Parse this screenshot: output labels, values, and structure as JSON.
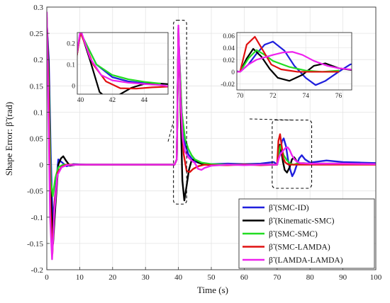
{
  "chart_data": {
    "type": "line",
    "xlabel": "Time (s)",
    "ylabel": "Shape Error: β̃ (rad)",
    "xlim": [
      0,
      100
    ],
    "ylim": [
      -0.2,
      0.3
    ],
    "xticks": [
      "0",
      "10",
      "20",
      "30",
      "40",
      "50",
      "60",
      "70",
      "80",
      "90",
      "100"
    ],
    "yticks": [
      "-0.2",
      "-0.15",
      "-0.1",
      "-0.05",
      "0",
      "0.05",
      "0.1",
      "0.15",
      "0.2",
      "0.25",
      "0.3"
    ],
    "grid": true,
    "legend_position": "bottom-right",
    "series": [
      {
        "name": "β̃ (SMC-ID)",
        "color": "#1f1fdd",
        "points": [
          [
            0,
            0.27
          ],
          [
            0.6,
            0.2
          ],
          [
            1.2,
            0.02
          ],
          [
            1.8,
            -0.11
          ],
          [
            2.5,
            -0.06
          ],
          [
            3.5,
            0.01
          ],
          [
            4.5,
            0.005
          ],
          [
            6,
            -0.003
          ],
          [
            8,
            0.001
          ],
          [
            12,
            0
          ],
          [
            20,
            0
          ],
          [
            30,
            0
          ],
          [
            38.8,
            0
          ],
          [
            39.5,
            0.01
          ],
          [
            40,
            0.25
          ],
          [
            41,
            0.1
          ],
          [
            42,
            0.04
          ],
          [
            43,
            0.02
          ],
          [
            44,
            0.012
          ],
          [
            45,
            0.006
          ],
          [
            47,
            0.002
          ],
          [
            50,
            0.001
          ],
          [
            55,
            0.002
          ],
          [
            60,
            0.001
          ],
          [
            65,
            0.002
          ],
          [
            69,
            0.005
          ],
          [
            70,
            0
          ],
          [
            70.5,
            0.012
          ],
          [
            71,
            0.03
          ],
          [
            71.5,
            0.045
          ],
          [
            72,
            0.05
          ],
          [
            72.7,
            0.035
          ],
          [
            73.3,
            0.01
          ],
          [
            74,
            -0.01
          ],
          [
            74.6,
            -0.022
          ],
          [
            75.2,
            -0.015
          ],
          [
            76,
            0
          ],
          [
            76.7,
            0.012
          ],
          [
            77.5,
            0.018
          ],
          [
            78.5,
            0.01
          ],
          [
            80,
            0.004
          ],
          [
            85,
            0.008
          ],
          [
            90,
            0.005
          ],
          [
            95,
            0.004
          ],
          [
            100,
            0.003
          ]
        ]
      },
      {
        "name": "β̃ (Kinematic-SMC)",
        "color": "#000000",
        "points": [
          [
            0,
            0.27
          ],
          [
            0.6,
            0.18
          ],
          [
            1.2,
            -0.05
          ],
          [
            1.9,
            -0.15
          ],
          [
            2.6,
            -0.08
          ],
          [
            3.5,
            0
          ],
          [
            4.3,
            0.012
          ],
          [
            5,
            0.016
          ],
          [
            5.8,
            0.008
          ],
          [
            7,
            -0.002
          ],
          [
            9,
            0
          ],
          [
            20,
            0
          ],
          [
            30,
            0
          ],
          [
            38.8,
            0
          ],
          [
            39.5,
            0.01
          ],
          [
            40,
            0.26
          ],
          [
            40.6,
            0.12
          ],
          [
            41.2,
            -0.03
          ],
          [
            41.8,
            -0.068
          ],
          [
            42.5,
            -0.04
          ],
          [
            43.2,
            -0.01
          ],
          [
            44,
            0.008
          ],
          [
            45,
            0.01
          ],
          [
            46,
            0.004
          ],
          [
            48,
            0
          ],
          [
            55,
            0
          ],
          [
            60,
            0
          ],
          [
            65,
            0
          ],
          [
            69.5,
            0
          ],
          [
            70,
            0
          ],
          [
            70.4,
            0.022
          ],
          [
            70.8,
            0.038
          ],
          [
            71.3,
            0.025
          ],
          [
            71.8,
            0.005
          ],
          [
            72.3,
            -0.01
          ],
          [
            73,
            -0.015
          ],
          [
            73.8,
            -0.005
          ],
          [
            74.5,
            0.01
          ],
          [
            75.2,
            0.014
          ],
          [
            76,
            0.006
          ],
          [
            77,
            0.002
          ],
          [
            78,
            0.001
          ],
          [
            80,
            0.002
          ],
          [
            85,
            0.002
          ],
          [
            90,
            0.002
          ],
          [
            95,
            0.001
          ],
          [
            100,
            0.001
          ]
        ]
      },
      {
        "name": "β̃ (SMC-SMC)",
        "color": "#22dd22",
        "points": [
          [
            0,
            0.27
          ],
          [
            0.6,
            0.15
          ],
          [
            1.2,
            -0.03
          ],
          [
            1.8,
            -0.06
          ],
          [
            2.6,
            -0.025
          ],
          [
            3.5,
            -0.005
          ],
          [
            5,
            0
          ],
          [
            10,
            0
          ],
          [
            20,
            0
          ],
          [
            30,
            0
          ],
          [
            38.8,
            0
          ],
          [
            39.5,
            0.01
          ],
          [
            40,
            0.25
          ],
          [
            41,
            0.1
          ],
          [
            42,
            0.05
          ],
          [
            43,
            0.03
          ],
          [
            44,
            0.018
          ],
          [
            45,
            0.01
          ],
          [
            47,
            0.004
          ],
          [
            50,
            0.001
          ],
          [
            55,
            0
          ],
          [
            60,
            0
          ],
          [
            65,
            0
          ],
          [
            69.5,
            0
          ],
          [
            70,
            0
          ],
          [
            70.5,
            0.022
          ],
          [
            71,
            0.036
          ],
          [
            71.5,
            0.028
          ],
          [
            72,
            0.018
          ],
          [
            73,
            0.008
          ],
          [
            74,
            0.002
          ],
          [
            75,
            0
          ],
          [
            76,
            0.002
          ],
          [
            78,
            0.003
          ],
          [
            80,
            0.002
          ],
          [
            90,
            0.001
          ],
          [
            100,
            0.001
          ]
        ]
      },
      {
        "name": "β̃ (SMC-LAMDA)",
        "color": "#e01010",
        "points": [
          [
            0,
            0.28
          ],
          [
            0.6,
            0.12
          ],
          [
            1.1,
            -0.08
          ],
          [
            1.7,
            -0.17
          ],
          [
            2.4,
            -0.07
          ],
          [
            3.3,
            -0.015
          ],
          [
            4.5,
            -0.004
          ],
          [
            6,
            0
          ],
          [
            10,
            0
          ],
          [
            20,
            0
          ],
          [
            30,
            0
          ],
          [
            38.8,
            0
          ],
          [
            39.5,
            0.01
          ],
          [
            40,
            0.25
          ],
          [
            40.8,
            0.1
          ],
          [
            41.6,
            0.02
          ],
          [
            42.5,
            -0.012
          ],
          [
            43.5,
            -0.014
          ],
          [
            44.5,
            -0.008
          ],
          [
            46,
            -0.003
          ],
          [
            48,
            0
          ],
          [
            50,
            -0.001
          ],
          [
            55,
            -0.001
          ],
          [
            60,
            0
          ],
          [
            65,
            -0.001
          ],
          [
            69.5,
            0
          ],
          [
            70,
            0
          ],
          [
            70.4,
            0.045
          ],
          [
            70.9,
            0.058
          ],
          [
            71.4,
            0.035
          ],
          [
            71.9,
            0.012
          ],
          [
            72.5,
            0.004
          ],
          [
            73.5,
            0
          ],
          [
            74.5,
            0
          ],
          [
            76,
            0
          ],
          [
            78,
            0
          ],
          [
            80,
            0
          ],
          [
            90,
            0
          ],
          [
            100,
            0
          ]
        ]
      },
      {
        "name": "β̃ (LAMDA-LAMDA)",
        "color": "#ee22ee",
        "points": [
          [
            0,
            0.29
          ],
          [
            0.5,
            0.1
          ],
          [
            1,
            -0.1
          ],
          [
            1.6,
            -0.18
          ],
          [
            2.3,
            -0.09
          ],
          [
            3.2,
            -0.02
          ],
          [
            4.5,
            -0.005
          ],
          [
            6,
            -0.001
          ],
          [
            10,
            0
          ],
          [
            20,
            0
          ],
          [
            30,
            0
          ],
          [
            38.8,
            0
          ],
          [
            39.5,
            0.01
          ],
          [
            40,
            0.265
          ],
          [
            40.6,
            0.13
          ],
          [
            41.3,
            0.05
          ],
          [
            42,
            0.025
          ],
          [
            43,
            0.014
          ],
          [
            44,
            0.008
          ],
          [
            45,
            0.003
          ],
          [
            46,
            -0.008
          ],
          [
            47,
            -0.01
          ],
          [
            48,
            -0.006
          ],
          [
            50,
            -0.002
          ],
          [
            55,
            0
          ],
          [
            60,
            -0.001
          ],
          [
            65,
            0
          ],
          [
            69.5,
            0
          ],
          [
            70,
            0
          ],
          [
            70.5,
            0.012
          ],
          [
            71,
            0.02
          ],
          [
            71.5,
            0.024
          ],
          [
            72,
            0.028
          ],
          [
            72.6,
            0.032
          ],
          [
            73.2,
            0.033
          ],
          [
            73.8,
            0.028
          ],
          [
            74.5,
            0.018
          ],
          [
            75.3,
            0.01
          ],
          [
            76,
            0.006
          ],
          [
            77,
            0.003
          ],
          [
            80,
            0.002
          ],
          [
            90,
            0.002
          ],
          [
            100,
            0.001
          ]
        ]
      }
    ],
    "insets": [
      {
        "xlim": [
          39.8,
          45.5
        ],
        "ylim": [
          -0.04,
          0.25
        ],
        "xticks": [
          "40",
          "42",
          "44"
        ],
        "yticks": [
          "0",
          "0.1",
          "0.2"
        ],
        "zoom_window": {
          "x": [
            38.5,
            42.5
          ],
          "y": [
            -0.075,
            0.275
          ]
        }
      },
      {
        "xlim": [
          69.8,
          76.8
        ],
        "ylim": [
          -0.03,
          0.065
        ],
        "xticks": [
          "70",
          "72",
          "74",
          "76"
        ],
        "yticks": [
          "-0.02",
          "0",
          "0.02",
          "0.04",
          "0.06"
        ],
        "zoom_window": {
          "x": [
            68.5,
            80.5
          ],
          "y": [
            -0.045,
            0.085
          ]
        }
      }
    ]
  }
}
